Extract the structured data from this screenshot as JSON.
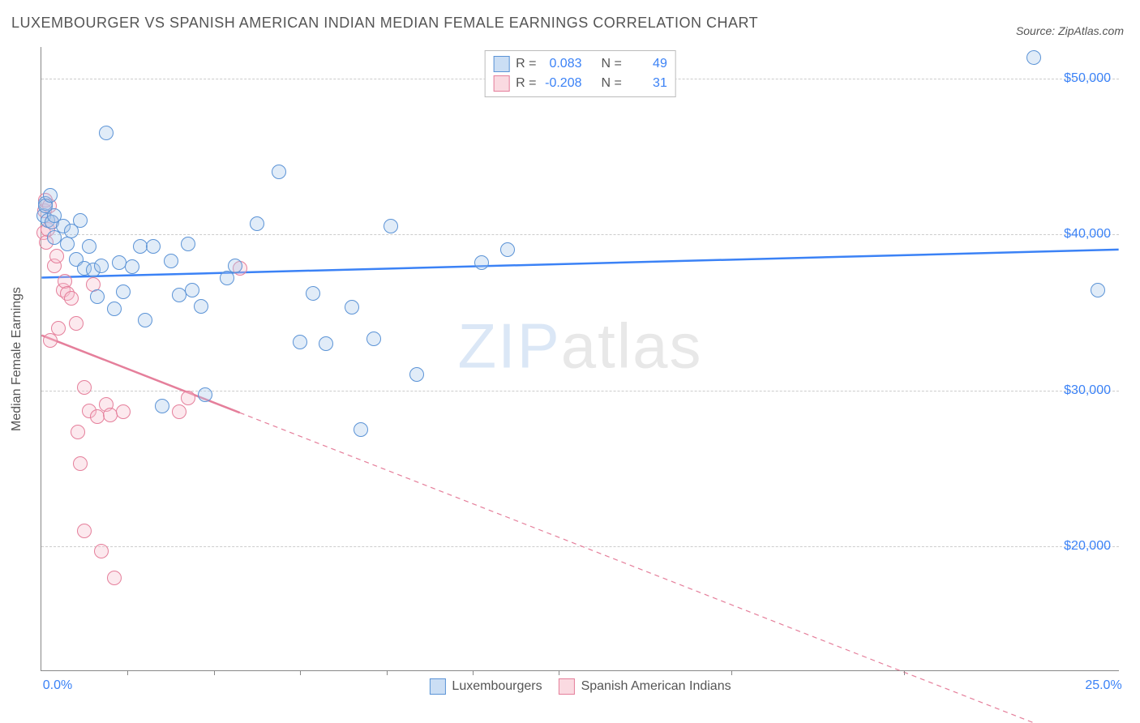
{
  "title": "LUXEMBOURGER VS SPANISH AMERICAN INDIAN MEDIAN FEMALE EARNINGS CORRELATION CHART",
  "source": "Source: ZipAtlas.com",
  "ylabel": "Median Female Earnings",
  "watermark_a": "ZIP",
  "watermark_b": "atlas",
  "chart": {
    "type": "scatter",
    "background_color": "#ffffff",
    "grid_color": "#cccccc",
    "axis_color": "#888888",
    "xlim": [
      0,
      25
    ],
    "ylim": [
      12000,
      52000
    ],
    "xticks": [
      0,
      25
    ],
    "xtick_labels": [
      "0.0%",
      "25.0%"
    ],
    "xtick_minor": [
      2,
      4,
      6,
      8,
      10,
      12,
      16,
      20
    ],
    "yticks": [
      20000,
      30000,
      40000,
      50000
    ],
    "ytick_labels": [
      "$20,000",
      "$30,000",
      "$40,000",
      "$50,000"
    ],
    "point_radius": 9,
    "point_border_width": 1.5,
    "point_fill_opacity": 0.35,
    "title_fontsize": 18,
    "label_fontsize": 16,
    "tick_fontsize": 16,
    "tick_color": "#3b82f6",
    "text_color": "#555555"
  },
  "series": {
    "luxembourgers": {
      "label": "Luxembourgers",
      "R": "0.083",
      "N": "49",
      "fill_color": "#a8c8ec",
      "stroke_color": "#5b93d6",
      "trend_color": "#3b82f6",
      "trend_width": 2.5,
      "trend_dash": "none",
      "trend": {
        "x1": 0,
        "y1": 37200,
        "x2": 25,
        "y2": 39000
      },
      "points": [
        {
          "x": 0.05,
          "y": 41200
        },
        {
          "x": 0.1,
          "y": 42000
        },
        {
          "x": 0.1,
          "y": 41800
        },
        {
          "x": 0.15,
          "y": 40900
        },
        {
          "x": 0.2,
          "y": 42500
        },
        {
          "x": 0.25,
          "y": 40800
        },
        {
          "x": 0.3,
          "y": 39800
        },
        {
          "x": 0.3,
          "y": 41200
        },
        {
          "x": 0.5,
          "y": 40500
        },
        {
          "x": 0.6,
          "y": 39400
        },
        {
          "x": 0.7,
          "y": 40200
        },
        {
          "x": 0.8,
          "y": 38400
        },
        {
          "x": 0.9,
          "y": 40900
        },
        {
          "x": 1.0,
          "y": 37800
        },
        {
          "x": 1.1,
          "y": 39200
        },
        {
          "x": 1.2,
          "y": 37700
        },
        {
          "x": 1.3,
          "y": 36000
        },
        {
          "x": 1.4,
          "y": 38000
        },
        {
          "x": 1.5,
          "y": 46500
        },
        {
          "x": 1.7,
          "y": 35200
        },
        {
          "x": 1.8,
          "y": 38200
        },
        {
          "x": 1.9,
          "y": 36300
        },
        {
          "x": 2.1,
          "y": 37900
        },
        {
          "x": 2.3,
          "y": 39200
        },
        {
          "x": 2.4,
          "y": 34500
        },
        {
          "x": 2.6,
          "y": 39200
        },
        {
          "x": 2.8,
          "y": 29000
        },
        {
          "x": 3.0,
          "y": 38300
        },
        {
          "x": 3.2,
          "y": 36100
        },
        {
          "x": 3.4,
          "y": 39400
        },
        {
          "x": 3.5,
          "y": 36400
        },
        {
          "x": 3.7,
          "y": 35400
        },
        {
          "x": 3.8,
          "y": 29700
        },
        {
          "x": 4.3,
          "y": 37200
        },
        {
          "x": 4.5,
          "y": 38000
        },
        {
          "x": 5.0,
          "y": 40700
        },
        {
          "x": 5.5,
          "y": 44000
        },
        {
          "x": 6.0,
          "y": 33100
        },
        {
          "x": 6.3,
          "y": 36200
        },
        {
          "x": 6.6,
          "y": 33000
        },
        {
          "x": 7.2,
          "y": 35300
        },
        {
          "x": 7.4,
          "y": 27500
        },
        {
          "x": 7.7,
          "y": 33300
        },
        {
          "x": 8.1,
          "y": 40500
        },
        {
          "x": 8.7,
          "y": 31000
        },
        {
          "x": 10.2,
          "y": 38200
        },
        {
          "x": 10.8,
          "y": 39000
        },
        {
          "x": 23.0,
          "y": 51300
        },
        {
          "x": 24.5,
          "y": 36400
        }
      ]
    },
    "spanish_american_indians": {
      "label": "Spanish American Indians",
      "R": "-0.208",
      "N": "31",
      "fill_color": "#f6c1cd",
      "stroke_color": "#e57f9b",
      "trend_color": "#e57f9b",
      "trend_width": 2.5,
      "trend_dash": "6 5",
      "trend_solid_until_x": 4.6,
      "trend": {
        "x1": 0,
        "y1": 33500,
        "x2": 25,
        "y2": 6500
      },
      "points": [
        {
          "x": 0.05,
          "y": 40100
        },
        {
          "x": 0.08,
          "y": 41500
        },
        {
          "x": 0.1,
          "y": 42200
        },
        {
          "x": 0.12,
          "y": 39500
        },
        {
          "x": 0.15,
          "y": 40300
        },
        {
          "x": 0.18,
          "y": 41800
        },
        {
          "x": 0.2,
          "y": 33200
        },
        {
          "x": 0.25,
          "y": 40800
        },
        {
          "x": 0.3,
          "y": 38000
        },
        {
          "x": 0.35,
          "y": 38600
        },
        {
          "x": 0.4,
          "y": 34000
        },
        {
          "x": 0.5,
          "y": 36400
        },
        {
          "x": 0.55,
          "y": 37000
        },
        {
          "x": 0.6,
          "y": 36200
        },
        {
          "x": 0.7,
          "y": 35900
        },
        {
          "x": 0.8,
          "y": 34300
        },
        {
          "x": 0.85,
          "y": 27300
        },
        {
          "x": 0.9,
          "y": 25300
        },
        {
          "x": 1.0,
          "y": 30200
        },
        {
          "x": 1.0,
          "y": 21000
        },
        {
          "x": 1.1,
          "y": 28700
        },
        {
          "x": 1.2,
          "y": 36800
        },
        {
          "x": 1.3,
          "y": 28300
        },
        {
          "x": 1.4,
          "y": 19700
        },
        {
          "x": 1.5,
          "y": 29100
        },
        {
          "x": 1.6,
          "y": 28400
        },
        {
          "x": 1.7,
          "y": 18000
        },
        {
          "x": 1.9,
          "y": 28600
        },
        {
          "x": 3.2,
          "y": 28600
        },
        {
          "x": 3.4,
          "y": 29500
        },
        {
          "x": 4.6,
          "y": 37800
        }
      ]
    }
  },
  "legend_top": {
    "r_label": "R =",
    "n_label": "N ="
  }
}
